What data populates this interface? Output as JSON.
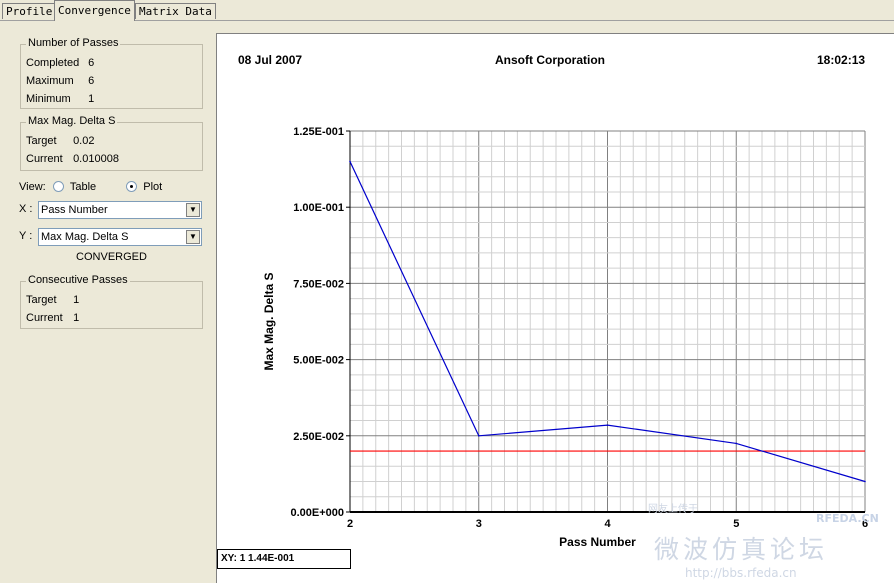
{
  "tabs": [
    {
      "label": "Profile",
      "active": false
    },
    {
      "label": "Convergence",
      "active": true
    },
    {
      "label": "Matrix Data",
      "active": false
    }
  ],
  "number_of_passes": {
    "title": "Number of Passes",
    "completed_label": "Completed",
    "completed": "6",
    "maximum_label": "Maximum",
    "maximum": "6",
    "minimum_label": "Minimum",
    "minimum": "1"
  },
  "max_mag_delta_s": {
    "title": "Max Mag. Delta S",
    "target_label": "Target",
    "target": "0.02",
    "current_label": "Current",
    "current": "0.010008"
  },
  "view": {
    "label": "View:",
    "option_table": "Table",
    "option_plot": "Plot",
    "selected": "Plot"
  },
  "x_select": {
    "label": "X :",
    "value": "Pass Number"
  },
  "y_select": {
    "label": "Y :",
    "value": "Max Mag. Delta S"
  },
  "status": "CONVERGED",
  "consecutive_passes": {
    "title": "Consecutive Passes",
    "target_label": "Target",
    "target": "1",
    "current_label": "Current",
    "current": "1"
  },
  "plot_header": {
    "date": "08 Jul 2007",
    "company": "Ansoft Corporation",
    "time": "18:02:13"
  },
  "xy_readout": "XY: 1 1.44E-001",
  "watermark": {
    "text1": "网友上传于",
    "brand": "RFEDA.CN",
    "text2": "微波仿真论坛",
    "url": "http://bbs.rfeda.cn"
  },
  "colors": {
    "series": "#0000cc",
    "target_line": "#ff0000",
    "grid_major": "#808080",
    "grid_minor": "#d0d0d0"
  },
  "chart_data": {
    "type": "line",
    "xlabel": "Pass Number",
    "ylabel": "Max Mag. Delta S",
    "xlim": [
      2,
      6
    ],
    "ylim": [
      0,
      0.125
    ],
    "x_ticks": [
      "2",
      "3",
      "4",
      "5",
      "6"
    ],
    "y_ticks": [
      "0.00E+000",
      "2.50E-002",
      "5.00E-002",
      "7.50E-002",
      "1.00E-001",
      "1.25E-001"
    ],
    "grid": true,
    "series": [
      {
        "x": [
          2,
          3,
          4,
          5,
          6
        ],
        "y": [
          0.115,
          0.025,
          0.0285,
          0.0225,
          0.010008
        ]
      }
    ],
    "reference_line": {
      "y": 0.02
    }
  }
}
